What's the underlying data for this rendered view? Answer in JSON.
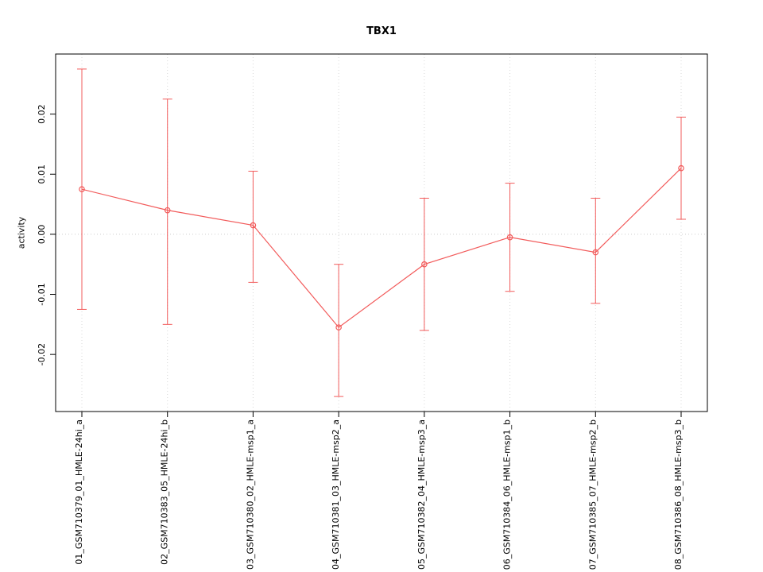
{
  "chart_data": {
    "type": "line",
    "title": "TBX1",
    "xlabel": "",
    "ylabel": "activity",
    "categories": [
      "01_GSM710379_01_HMLE-24hi_a",
      "02_GSM710383_05_HMLE-24hi_b",
      "03_GSM710380_02_HMLE-msp1_a",
      "04_GSM710381_03_HMLE-msp2_a",
      "05_GSM710382_04_HMLE-msp3_a",
      "06_GSM710384_06_HMLE-msp1_b",
      "07_GSM710385_07_HMLE-msp2_b",
      "08_GSM710386_08_HMLE-msp3_b"
    ],
    "values": [
      0.0075,
      0.004,
      0.0015,
      -0.0155,
      -0.005,
      -0.0005,
      -0.003,
      0.011
    ],
    "error_low": [
      -0.0125,
      -0.015,
      -0.008,
      -0.027,
      -0.016,
      -0.0095,
      -0.0115,
      0.0025
    ],
    "error_high": [
      0.0275,
      0.0225,
      0.0105,
      -0.005,
      0.006,
      0.0085,
      0.006,
      0.0195
    ],
    "yticks": [
      -0.02,
      -0.01,
      0,
      0.01,
      0.02
    ],
    "ylim": [
      -0.0295,
      0.03
    ],
    "grid": true,
    "legend": "none",
    "line_color": "#f25b5b",
    "grid_color": "#d8d8d8",
    "zero_line_color": "#cccccc",
    "axis_color": "#000000",
    "zero_line": 0
  }
}
